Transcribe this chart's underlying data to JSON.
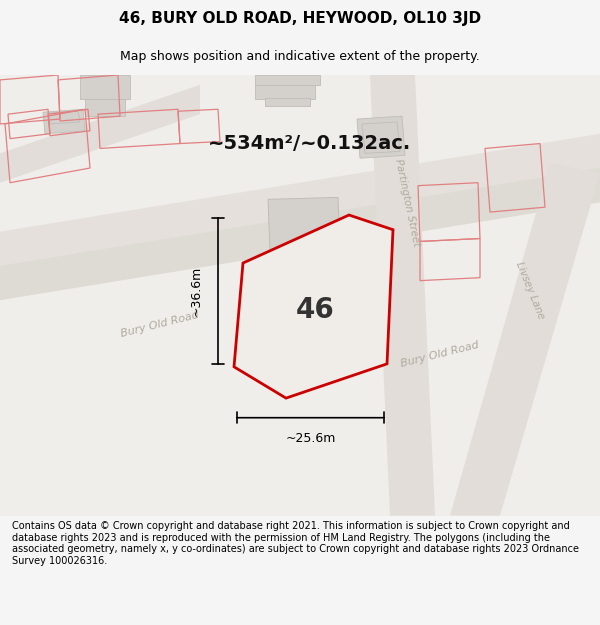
{
  "title": "46, BURY OLD ROAD, HEYWOOD, OL10 3JD",
  "subtitle": "Map shows position and indicative extent of the property.",
  "area_label": "~534m²/~0.132ac.",
  "number_label": "46",
  "dim_width": "~25.6m",
  "dim_height": "~36.6m",
  "footer": "Contains OS data © Crown copyright and database right 2021. This information is subject to Crown copyright and database rights 2023 and is reproduced with the permission of HM Land Registry. The polygons (including the associated geometry, namely x, y co-ordinates) are subject to Crown copyright and database rights 2023 Ordnance Survey 100026316.",
  "bg_color": "#f0eeeb",
  "map_bg": "#f0eeeb",
  "road_color": "#d4c8b8",
  "building_fill": "#d9d9d9",
  "building_edge": "#c0c0c0",
  "highlight_fill": "#e8e4df",
  "highlight_edge": "#cc0000",
  "road_label_color": "#aaaaaa",
  "dim_line_color": "#000000",
  "title_color": "#000000",
  "footer_color": "#000000",
  "road_outline_color": "#e8e0d8",
  "pink_outline_color": "#e88080"
}
